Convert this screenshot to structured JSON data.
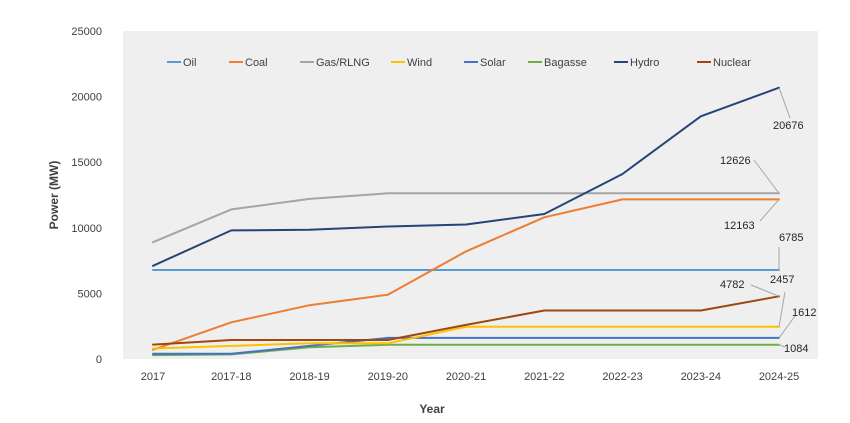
{
  "chart_data": {
    "type": "line",
    "xlabel": "Year",
    "ylabel": "Power (MW)",
    "ylim": [
      0,
      25000
    ],
    "yticks": [
      0,
      5000,
      10000,
      15000,
      20000,
      25000
    ],
    "grid": false,
    "legend": "top",
    "categories": [
      "2017",
      "2017-18",
      "2018-19",
      "2019-20",
      "2020-21",
      "2021-22",
      "2022-23",
      "2023-24",
      "2024-25"
    ],
    "series": [
      {
        "name": "Oil",
        "color": "#5B9BD5",
        "values": [
          6785,
          6785,
          6785,
          6785,
          6785,
          6785,
          6785,
          6785,
          6785
        ]
      },
      {
        "name": "Coal",
        "color": "#ED7D31",
        "values": [
          700,
          2800,
          4100,
          4900,
          8200,
          10800,
          12163,
          12163,
          12163
        ]
      },
      {
        "name": "Gas/RLNG",
        "color": "#A5A5A5",
        "values": [
          8900,
          11400,
          12200,
          12626,
          12626,
          12626,
          12626,
          12626,
          12626
        ]
      },
      {
        "name": "Wind",
        "color": "#FFC000",
        "values": [
          800,
          1000,
          1200,
          1200,
          2457,
          2457,
          2457,
          2457,
          2457
        ]
      },
      {
        "name": "Solar",
        "color": "#4472C4",
        "values": [
          400,
          400,
          1000,
          1612,
          1612,
          1612,
          1612,
          1612,
          1612
        ]
      },
      {
        "name": "Bagasse",
        "color": "#70AD47",
        "values": [
          300,
          350,
          900,
          1084,
          1084,
          1084,
          1084,
          1084,
          1084
        ]
      },
      {
        "name": "Hydro",
        "color": "#264478",
        "values": [
          7100,
          9800,
          9850,
          10100,
          10250,
          11050,
          14100,
          18500,
          20676
        ]
      },
      {
        "name": "Nuclear",
        "color": "#9E480E",
        "values": [
          1100,
          1450,
          1450,
          1450,
          2600,
          3700,
          3700,
          3700,
          4782
        ]
      }
    ],
    "data_labels": [
      {
        "text": "20676",
        "series": "Hydro"
      },
      {
        "text": "12626",
        "series": "Gas/RLNG"
      },
      {
        "text": "12163",
        "series": "Coal"
      },
      {
        "text": "6785",
        "series": "Oil"
      },
      {
        "text": "4782",
        "series": "Nuclear"
      },
      {
        "text": "2457",
        "series": "Wind"
      },
      {
        "text": "1612",
        "series": "Solar"
      },
      {
        "text": "1084",
        "series": "Bagasse"
      }
    ]
  }
}
